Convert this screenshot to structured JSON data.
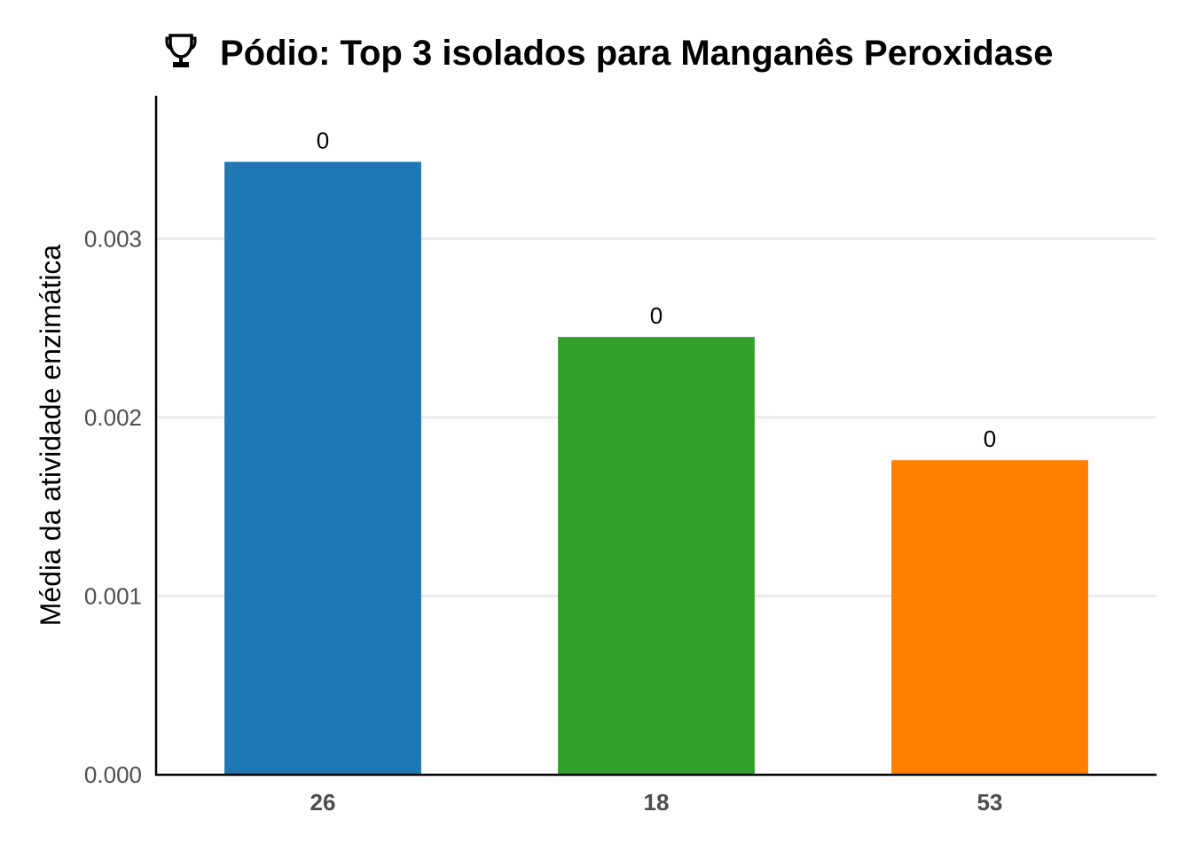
{
  "chart_data": {
    "type": "bar",
    "title": "Pódio: Top 3 isolados para Manganês Peroxidase",
    "title_icon": "trophy-icon",
    "xlabel": "",
    "ylabel": "Média da atividade enzimática",
    "categories": [
      "26",
      "18",
      "53"
    ],
    "values": [
      0.00343,
      0.00245,
      0.00176
    ],
    "value_labels": [
      "0",
      "0",
      "0"
    ],
    "colors": [
      "#1f77b4",
      "#33a02c",
      "#ff7f00"
    ],
    "ylim": [
      0,
      0.0038
    ],
    "yticks": [
      0,
      0.001,
      0.002,
      0.003
    ],
    "ytick_labels": [
      "0.000",
      "0.001",
      "0.002",
      "0.003"
    ],
    "grid": "horizontal",
    "legend": "none"
  }
}
